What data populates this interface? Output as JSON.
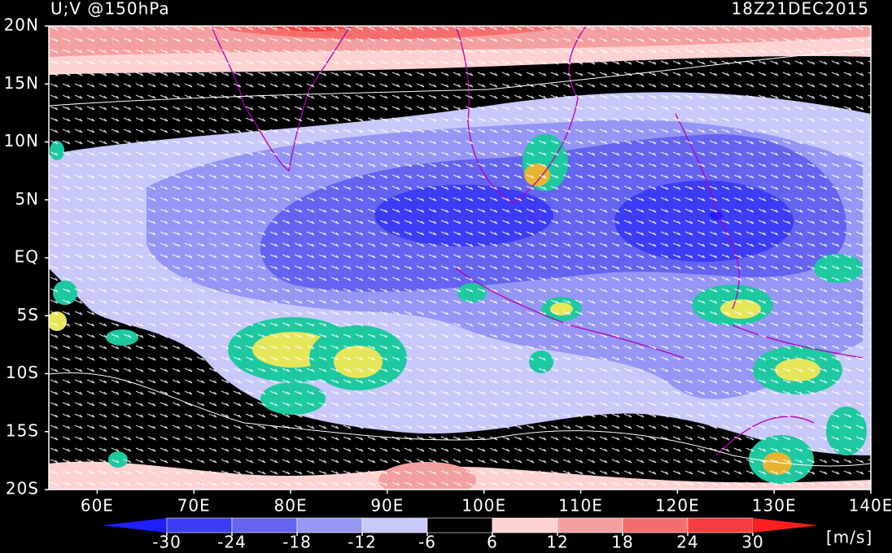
{
  "map": {
    "title": "U;V @150hPa",
    "time": "18Z21DEC2015",
    "lonlim": [
      55,
      140
    ],
    "latlim": [
      -20,
      20
    ],
    "lat_ticks": [
      {
        "value": 20,
        "label": "20N"
      },
      {
        "value": 15,
        "label": "15N"
      },
      {
        "value": 10,
        "label": "10N"
      },
      {
        "value": 5,
        "label": "5N"
      },
      {
        "value": 0,
        "label": "EQ"
      },
      {
        "value": -5,
        "label": "5S"
      },
      {
        "value": -10,
        "label": "10S"
      },
      {
        "value": -15,
        "label": "15S"
      },
      {
        "value": -20,
        "label": "20S"
      }
    ],
    "lon_ticks": [
      {
        "value": 60,
        "label": "60E"
      },
      {
        "value": 70,
        "label": "70E"
      },
      {
        "value": 80,
        "label": "80E"
      },
      {
        "value": 90,
        "label": "90E"
      },
      {
        "value": 100,
        "label": "100E"
      },
      {
        "value": 110,
        "label": "110E"
      },
      {
        "value": 120,
        "label": "120E"
      },
      {
        "value": 130,
        "label": "130E"
      },
      {
        "value": 140,
        "label": "140E"
      }
    ],
    "colorbar": {
      "levels": [
        -30,
        -24,
        -18,
        -12,
        -6,
        6,
        12,
        18,
        24,
        30
      ],
      "colors": [
        "#1e1eff",
        "#3c3cf5",
        "#6464f0",
        "#9696f5",
        "#c8c8fa",
        "#000000",
        "#ffd2d2",
        "#f5a0a0",
        "#f56e6e",
        "#f53c3c",
        "#ff1e1e"
      ],
      "unit": "[m/s]"
    }
  }
}
